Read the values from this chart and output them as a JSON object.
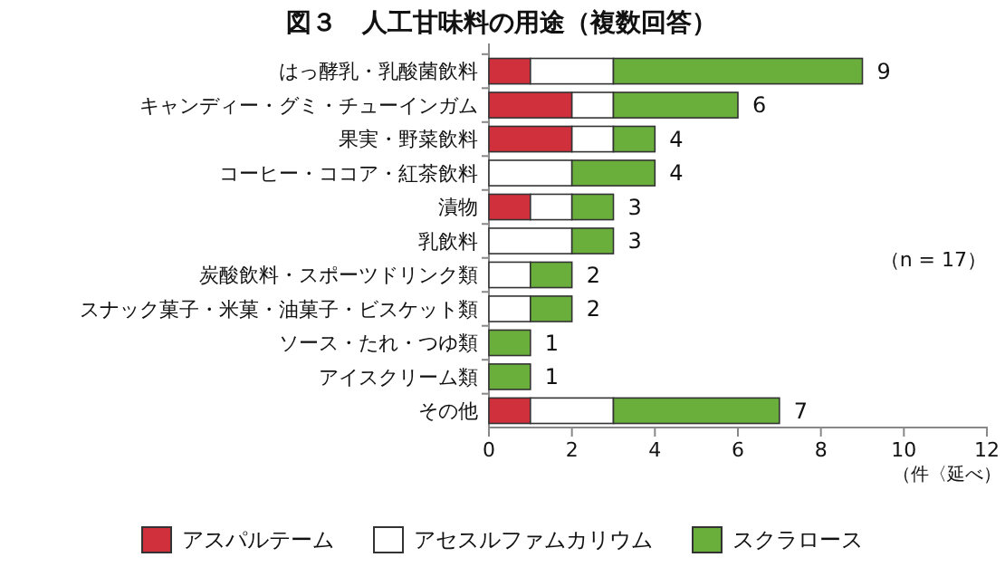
{
  "chart_data": {
    "type": "bar",
    "orientation": "horizontal",
    "stacked": true,
    "title": "図３　人工甘味料の用途（複数回答）",
    "xlabel": "（件〈延べ）",
    "categories": [
      "はっ酵乳・乳酸菌飲料",
      "キャンディー・グミ・チューインガム",
      "果実・野菜飲料",
      "コーヒー・ココア・紅茶飲料",
      "漬物",
      "乳飲料",
      "炭酸飲料・スポーツドリンク類",
      "スナック菓子・米菓・油菓子・ビスケット類",
      "ソース・たれ・つゆ類",
      "アイスクリーム類",
      "その他"
    ],
    "series": [
      {
        "name": "アスパルテーム",
        "color": "#d0303c",
        "values": [
          1,
          2,
          2,
          null,
          1,
          null,
          null,
          null,
          null,
          null,
          1
        ]
      },
      {
        "name": "アセスルファムカリウム",
        "color": "#ffffff",
        "values": [
          2,
          1,
          1,
          2,
          1,
          2,
          1,
          1,
          null,
          null,
          2
        ]
      },
      {
        "name": "スクラロース",
        "color": "#6aaf3c",
        "values": [
          6,
          3,
          1,
          2,
          1,
          1,
          1,
          1,
          1,
          1,
          4
        ]
      }
    ],
    "totals": [
      "9",
      "6",
      "4",
      "4",
      "3",
      "3",
      "2",
      "2",
      "1",
      "1",
      "7"
    ],
    "xlim": [
      0,
      12
    ],
    "xticks": [
      0,
      2,
      4,
      6,
      8,
      10,
      12
    ],
    "grid": false,
    "legend": "bottom",
    "annotations": [
      "（n = 17）"
    ]
  }
}
